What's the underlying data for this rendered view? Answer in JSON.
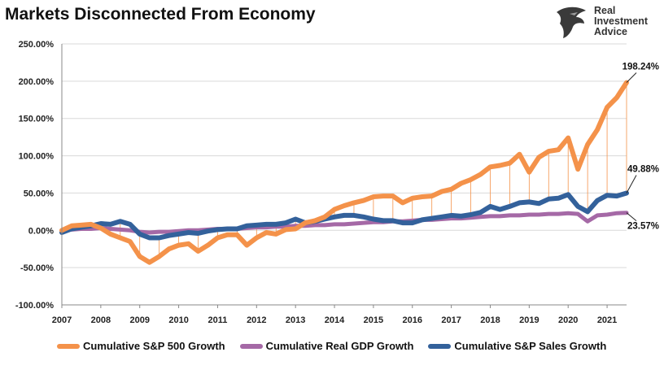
{
  "chart_data": {
    "type": "line",
    "title": "Markets Disconnected From Economy",
    "xlabel": "",
    "ylabel": "",
    "ylim": [
      -100,
      250
    ],
    "y_ticks": [
      "250.00%",
      "200.00%",
      "150.00%",
      "100.00%",
      "50.00%",
      "0.00%",
      "-50.00%",
      "-100.00%"
    ],
    "x_ticks": [
      "2007",
      "2008",
      "2009",
      "2010",
      "2011",
      "2012",
      "2013",
      "2014",
      "2015",
      "2016",
      "2017",
      "2018",
      "2019",
      "2020",
      "2021"
    ],
    "x_start": 2007,
    "x_step": 0.25,
    "grid": "horizontal",
    "legend_position": "bottom",
    "series": [
      {
        "name": "Cumulative S&P 500 Growth",
        "color": "#f4924a",
        "values": [
          0,
          6,
          7,
          8,
          3,
          -5,
          -10,
          -15,
          -35,
          -43,
          -35,
          -25,
          -20,
          -18,
          -28,
          -20,
          -10,
          -6,
          -6,
          -20,
          -10,
          -3,
          -5,
          1,
          2,
          10,
          13,
          18,
          28,
          33,
          37,
          40,
          45,
          46,
          46,
          37,
          43,
          45,
          46,
          52,
          55,
          63,
          68,
          75,
          85,
          87,
          90,
          102,
          78,
          98,
          106,
          108,
          124,
          82,
          115,
          135,
          165,
          178,
          198.24
        ]
      },
      {
        "name": "Cumulative Real GDP Growth",
        "color": "#a569a6",
        "values": [
          0,
          1,
          2,
          2,
          3,
          2,
          1,
          0,
          -2,
          -3,
          -2,
          -2,
          -1,
          0,
          0,
          1,
          2,
          2,
          2,
          3,
          4,
          4,
          5,
          5,
          6,
          6,
          7,
          7,
          8,
          8,
          9,
          10,
          11,
          11,
          12,
          12,
          13,
          14,
          14,
          15,
          16,
          16,
          17,
          18,
          19,
          19,
          20,
          20,
          21,
          21,
          22,
          22,
          23,
          22,
          12,
          20,
          21,
          23,
          23.57
        ]
      },
      {
        "name": "Cumulative S&P Sales Growth",
        "color": "#33619b",
        "values": [
          -3,
          2,
          4,
          6,
          9,
          8,
          12,
          8,
          -5,
          -10,
          -10,
          -7,
          -5,
          -3,
          -4,
          -1,
          1,
          2,
          2,
          6,
          7,
          8,
          8,
          10,
          15,
          10,
          12,
          15,
          18,
          20,
          20,
          18,
          15,
          13,
          13,
          10,
          10,
          14,
          16,
          18,
          20,
          19,
          21,
          24,
          32,
          28,
          32,
          37,
          38,
          36,
          42,
          43,
          48,
          32,
          25,
          40,
          47,
          46,
          49.88
        ]
      }
    ],
    "annotations": [
      {
        "label": "198.24%",
        "x": 2021.5,
        "y": 198.24
      },
      {
        "label": "49.88%",
        "x": 2021.5,
        "y": 49.88
      },
      {
        "label": "23.57%",
        "x": 2021.5,
        "y": 23.57
      }
    ]
  },
  "logo": {
    "line1": "Real",
    "line2": "Investment",
    "line3": "Advice"
  }
}
